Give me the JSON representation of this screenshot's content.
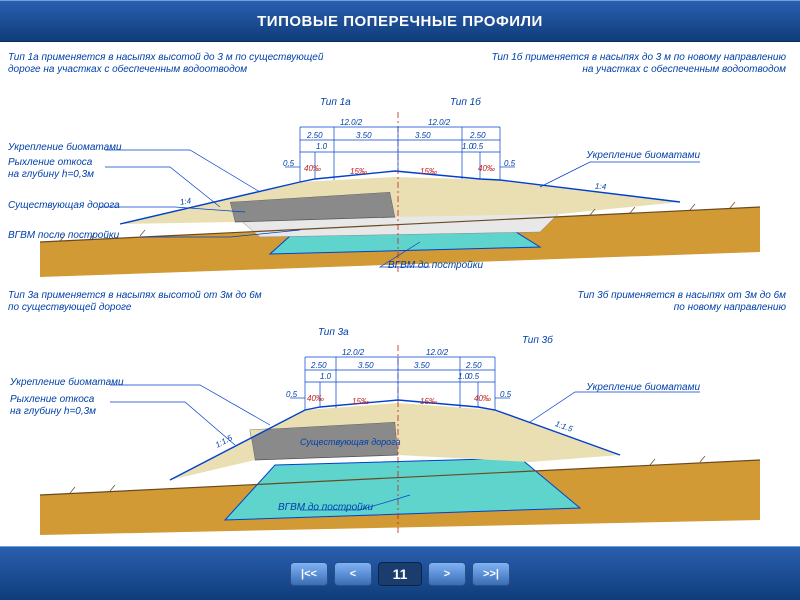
{
  "header": {
    "title": "ТИПОВЫЕ ПОПЕРЕЧНЫЕ ПРОФИЛИ"
  },
  "nav": {
    "first": "|<<",
    "prev": "<",
    "page": "11",
    "next": ">",
    "last": ">>|"
  },
  "colors": {
    "ground": "#d19a34",
    "existing_road": "#8a8a8a",
    "new_fill": "#e9dfb3",
    "water_before": "#5fd4cc",
    "water_after": "#e8e8e8",
    "outline_blue": "#0040d0",
    "outline_red": "#c02020",
    "hatch": "#6a4a20"
  },
  "profiles": {
    "top": {
      "desc_left": "Тип 1а   применяется в насыпях высотой до 3 м по существующей\nдороге на участках с обеспеченным водоотводом",
      "desc_right": "Тип 1б   применяется в насыпях до 3 м по новому направлению\nна участках с обеспеченным водоотводом",
      "label_left": "Тип 1а",
      "label_right": "Тип 1б",
      "callouts": {
        "biomat_l": "Укрепление  биоматами",
        "biomat_r": "Укрепление  биоматами",
        "loosen": "Рыхление откоса\nна глубину h=0,3м",
        "existing_road": "Существующая дорога",
        "water_after": "ВГВМ после постройки",
        "water_before": "ВГВМ до постройки"
      },
      "dims": {
        "half_top": "12.0/2",
        "d250": "2.50",
        "d350": "3.50",
        "d10": "1.0",
        "d05": "0.5",
        "slope40": "40‰",
        "cross15": "15‰",
        "slope_l": "1:4",
        "slope_r": "1:4"
      }
    },
    "bottom": {
      "desc_left": "Тип 3а   применяется в насыпях высотой от 3м до 6м\nпо существующей дороге",
      "desc_right": "Тип 3б   применяется  в насыпях от 3м до 6м\nпо новому направлению",
      "label_left": "Тип 3а",
      "label_right": "Тип 3б",
      "callouts": {
        "biomat_l": "Укрепление  биоматами",
        "biomat_r": "Укрепление  биоматами",
        "loosen": "Рыхление откоса\nна глубину h=0,3м",
        "existing_road": "Существующая дорога",
        "water_before": "ВГВМ до постройки"
      },
      "dims": {
        "half_top": "12.0/2",
        "d250": "2.50",
        "d350": "3.50",
        "d10": "1.0",
        "d05": "0.5",
        "slope40": "40‰",
        "cross15": "15‰",
        "slope_l": "1:1.5",
        "slope_r": "1:1.5"
      }
    }
  }
}
